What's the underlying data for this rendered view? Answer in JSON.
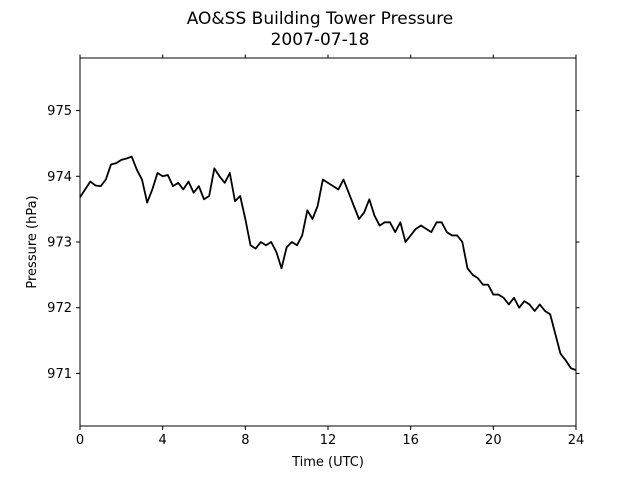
{
  "chart_data": {
    "type": "line",
    "title": "AO&SS Building Tower Pressure",
    "subtitle": "2007-07-18",
    "xlabel": "Time (UTC)",
    "ylabel": "Pressure (hPa)",
    "xlim": [
      0,
      24
    ],
    "ylim": [
      970.2,
      975.8
    ],
    "xticks": [
      0,
      4,
      8,
      12,
      16,
      20,
      24
    ],
    "yticks": [
      971,
      972,
      973,
      974,
      975
    ],
    "grid": false,
    "legend": "none",
    "line_color": "#000000",
    "series": [
      {
        "x": [
          0,
          0.25,
          0.5,
          0.75,
          1.0,
          1.25,
          1.5,
          1.75,
          2.0,
          2.25,
          2.5,
          2.75,
          3.0,
          3.25,
          3.5,
          3.75,
          4.0,
          4.25,
          4.5,
          4.75,
          5.0,
          5.25,
          5.5,
          5.75,
          6.0,
          6.25,
          6.5,
          6.75,
          7.0,
          7.25,
          7.5,
          7.75,
          8.0,
          8.25,
          8.5,
          8.75,
          9.0,
          9.25,
          9.5,
          9.75,
          10.0,
          10.25,
          10.5,
          10.75,
          11.0,
          11.25,
          11.5,
          11.75,
          12.0,
          12.25,
          12.5,
          12.75,
          13.0,
          13.25,
          13.5,
          13.75,
          14.0,
          14.25,
          14.5,
          14.75,
          15.0,
          15.25,
          15.5,
          15.75,
          16.0,
          16.25,
          16.5,
          16.75,
          17.0,
          17.25,
          17.5,
          17.75,
          18.0,
          18.25,
          18.5,
          18.75,
          19.0,
          19.25,
          19.5,
          19.75,
          20.0,
          20.25,
          20.5,
          20.75,
          21.0,
          21.25,
          21.5,
          21.75,
          22.0,
          22.25,
          22.5,
          22.75,
          23.0,
          23.25,
          23.5,
          23.75,
          24.0
        ],
        "values": [
          973.68,
          973.8,
          973.92,
          973.86,
          973.85,
          973.95,
          974.18,
          974.2,
          974.25,
          974.27,
          974.3,
          974.1,
          973.95,
          973.6,
          973.8,
          974.05,
          974.0,
          974.02,
          973.85,
          973.9,
          973.8,
          973.92,
          973.75,
          973.85,
          973.65,
          973.7,
          974.12,
          974.0,
          973.9,
          974.05,
          973.62,
          973.7,
          973.35,
          972.95,
          972.9,
          973.0,
          972.95,
          973.0,
          972.85,
          972.6,
          972.92,
          973.0,
          972.95,
          973.1,
          973.48,
          973.35,
          973.55,
          973.95,
          973.9,
          973.85,
          973.8,
          973.95,
          973.75,
          973.55,
          973.35,
          973.45,
          973.65,
          973.4,
          973.25,
          973.3,
          973.3,
          973.15,
          973.3,
          973.0,
          973.1,
          973.2,
          973.25,
          973.2,
          973.15,
          973.3,
          973.3,
          973.15,
          973.1,
          973.1,
          973.0,
          972.6,
          972.5,
          972.45,
          972.35,
          972.35,
          972.2,
          972.2,
          972.15,
          972.05,
          972.15,
          972.0,
          972.1,
          972.05,
          971.95,
          972.05,
          971.95,
          971.9,
          971.6,
          971.3,
          971.2,
          971.08,
          971.05
        ]
      }
    ]
  }
}
